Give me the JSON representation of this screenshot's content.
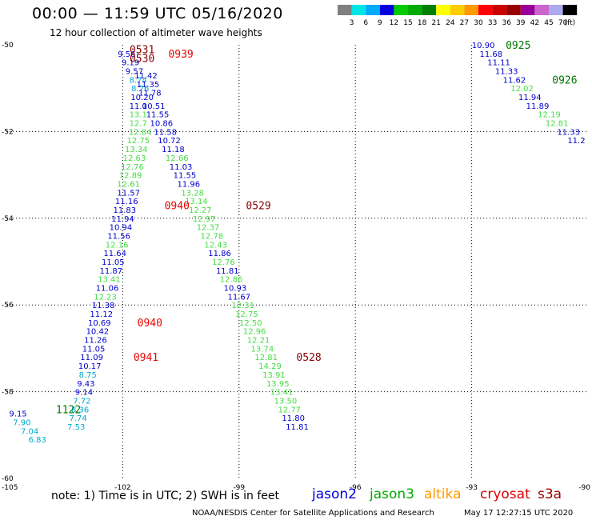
{
  "header": {
    "title": "00:00 — 11:59 UTC 05/16/2020",
    "subtitle": "12 hour collection of altimeter wave heights"
  },
  "colorbar": {
    "colors": [
      "#808080",
      "#00e5e5",
      "#00aaff",
      "#0000e0",
      "#00cc00",
      "#00aa00",
      "#008000",
      "#ffff00",
      "#ffcc00",
      "#ff9900",
      "#ff0000",
      "#cc0000",
      "#990000",
      "#990099",
      "#cc66cc",
      "#aaaaee",
      "#000000"
    ],
    "ticks": [
      "3",
      "6",
      "9",
      "12",
      "15",
      "18",
      "21",
      "24",
      "27",
      "30",
      "33",
      "36",
      "39",
      "42",
      "45",
      "70",
      "(ft)"
    ]
  },
  "axes": {
    "y_ticks": [
      "-50",
      "-52",
      "-54",
      "-56",
      "-58",
      "-60"
    ],
    "x_ticks": [
      "-105",
      "-102",
      "-99",
      "-96",
      "-93",
      "-90"
    ]
  },
  "chart_data": {
    "type": "scatter",
    "xlim": [
      -105,
      -90
    ],
    "ylim": [
      -60,
      -50
    ],
    "grid": true,
    "points": [
      {
        "lon": -101.9,
        "lat": -50.2,
        "v": "9.56",
        "c": "blue"
      },
      {
        "lon": -101.8,
        "lat": -50.4,
        "v": "9.19",
        "c": "blue"
      },
      {
        "lon": -101.7,
        "lat": -50.6,
        "v": "9.57",
        "c": "blue"
      },
      {
        "lon": -101.6,
        "lat": -50.8,
        "v": "8.74",
        "c": "cyan"
      },
      {
        "lon": -101.55,
        "lat": -51.0,
        "v": "8.76",
        "c": "cyan"
      },
      {
        "lon": -101.5,
        "lat": -51.2,
        "v": "10.20",
        "c": "blue"
      },
      {
        "lon": -101.6,
        "lat": -51.4,
        "v": "11.0",
        "c": "blue"
      },
      {
        "lon": -101.6,
        "lat": -51.6,
        "v": "13.1",
        "c": "green"
      },
      {
        "lon": -101.6,
        "lat": -51.8,
        "v": "12.7",
        "c": "green"
      },
      {
        "lon": -101.55,
        "lat": -52.0,
        "v": "12.84",
        "c": "green"
      },
      {
        "lon": -101.6,
        "lat": -52.2,
        "v": "12.75",
        "c": "green"
      },
      {
        "lon": -101.65,
        "lat": -52.4,
        "v": "13.34",
        "c": "green"
      },
      {
        "lon": -101.7,
        "lat": -52.6,
        "v": "12.63",
        "c": "green"
      },
      {
        "lon": -101.75,
        "lat": -52.8,
        "v": "12.76",
        "c": "green"
      },
      {
        "lon": -101.8,
        "lat": -53.0,
        "v": "12.89",
        "c": "green"
      },
      {
        "lon": -101.85,
        "lat": -53.2,
        "v": "12.61",
        "c": "green"
      },
      {
        "lon": -101.85,
        "lat": -53.4,
        "v": "11.57",
        "c": "blue"
      },
      {
        "lon": -101.9,
        "lat": -53.6,
        "v": "11.16",
        "c": "blue"
      },
      {
        "lon": -101.95,
        "lat": -53.8,
        "v": "11.83",
        "c": "blue"
      },
      {
        "lon": -102.0,
        "lat": -54.0,
        "v": "11.94",
        "c": "blue"
      },
      {
        "lon": -102.05,
        "lat": -54.2,
        "v": "10.94",
        "c": "blue"
      },
      {
        "lon": -102.1,
        "lat": -54.4,
        "v": "11.56",
        "c": "blue"
      },
      {
        "lon": -102.15,
        "lat": -54.6,
        "v": "12.16",
        "c": "green"
      },
      {
        "lon": -102.2,
        "lat": -54.8,
        "v": "11.64",
        "c": "blue"
      },
      {
        "lon": -102.25,
        "lat": -55.0,
        "v": "11.05",
        "c": "blue"
      },
      {
        "lon": -102.3,
        "lat": -55.2,
        "v": "11.87",
        "c": "blue"
      },
      {
        "lon": -102.35,
        "lat": -55.4,
        "v": "13.41",
        "c": "green"
      },
      {
        "lon": -102.4,
        "lat": -55.6,
        "v": "11.06",
        "c": "blue"
      },
      {
        "lon": -102.45,
        "lat": -55.8,
        "v": "12.23",
        "c": "green"
      },
      {
        "lon": -102.5,
        "lat": -56.0,
        "v": "11.38",
        "c": "blue"
      },
      {
        "lon": -102.55,
        "lat": -56.2,
        "v": "11.12",
        "c": "blue"
      },
      {
        "lon": -102.6,
        "lat": -56.4,
        "v": "10.69",
        "c": "blue"
      },
      {
        "lon": -102.65,
        "lat": -56.6,
        "v": "10.42",
        "c": "blue"
      },
      {
        "lon": -102.7,
        "lat": -56.8,
        "v": "11.26",
        "c": "blue"
      },
      {
        "lon": -102.75,
        "lat": -57.0,
        "v": "11.05",
        "c": "blue"
      },
      {
        "lon": -102.8,
        "lat": -57.2,
        "v": "11.09",
        "c": "blue"
      },
      {
        "lon": -102.85,
        "lat": -57.4,
        "v": "10.17",
        "c": "blue"
      },
      {
        "lon": -102.9,
        "lat": -57.6,
        "v": "8.75",
        "c": "cyan"
      },
      {
        "lon": -102.95,
        "lat": -57.8,
        "v": "9.43",
        "c": "blue"
      },
      {
        "lon": -103.0,
        "lat": -58.0,
        "v": "9.14",
        "c": "blue"
      },
      {
        "lon": -103.05,
        "lat": -58.2,
        "v": "7.72",
        "c": "cyan"
      },
      {
        "lon": -103.1,
        "lat": -58.4,
        "v": "8.36",
        "c": "cyan"
      },
      {
        "lon": -103.15,
        "lat": -58.6,
        "v": "7.74",
        "c": "cyan"
      },
      {
        "lon": -103.2,
        "lat": -58.8,
        "v": "7.53",
        "c": "cyan"
      },
      {
        "lon": -104.7,
        "lat": -58.5,
        "v": "9.15",
        "c": "blue"
      },
      {
        "lon": -104.6,
        "lat": -58.7,
        "v": "7.90",
        "c": "cyan"
      },
      {
        "lon": -104.4,
        "lat": -58.9,
        "v": "7.04",
        "c": "cyan"
      },
      {
        "lon": -104.2,
        "lat": -59.1,
        "v": "6.83",
        "c": "cyan"
      },
      {
        "lon": -101.4,
        "lat": -50.7,
        "v": "11.42",
        "c": "blue"
      },
      {
        "lon": -101.35,
        "lat": -50.9,
        "v": "11.35",
        "c": "blue"
      },
      {
        "lon": -101.3,
        "lat": -51.1,
        "v": "11.78",
        "c": "blue"
      },
      {
        "lon": -101.2,
        "lat": -51.4,
        "v": "10.51",
        "c": "blue"
      },
      {
        "lon": -101.1,
        "lat": -51.6,
        "v": "11.55",
        "c": "blue"
      },
      {
        "lon": -101.0,
        "lat": -51.8,
        "v": "10.86",
        "c": "blue"
      },
      {
        "lon": -100.9,
        "lat": -52.0,
        "v": "11.58",
        "c": "blue"
      },
      {
        "lon": -100.8,
        "lat": -52.2,
        "v": "10.72",
        "c": "blue"
      },
      {
        "lon": -100.7,
        "lat": -52.4,
        "v": "11.18",
        "c": "blue"
      },
      {
        "lon": -100.6,
        "lat": -52.6,
        "v": "12.66",
        "c": "green"
      },
      {
        "lon": -100.5,
        "lat": -52.8,
        "v": "11.03",
        "c": "blue"
      },
      {
        "lon": -100.4,
        "lat": -53.0,
        "v": "11.55",
        "c": "blue"
      },
      {
        "lon": -100.3,
        "lat": -53.2,
        "v": "11.96",
        "c": "blue"
      },
      {
        "lon": -100.2,
        "lat": -53.4,
        "v": "13.28",
        "c": "green"
      },
      {
        "lon": -100.1,
        "lat": -53.6,
        "v": "13.14",
        "c": "green"
      },
      {
        "lon": -100.0,
        "lat": -53.8,
        "v": "12.27",
        "c": "green"
      },
      {
        "lon": -99.9,
        "lat": -54.0,
        "v": "12.97",
        "c": "green"
      },
      {
        "lon": -99.8,
        "lat": -54.2,
        "v": "12.37",
        "c": "green"
      },
      {
        "lon": -99.7,
        "lat": -54.4,
        "v": "12.78",
        "c": "green"
      },
      {
        "lon": -99.6,
        "lat": -54.6,
        "v": "12.43",
        "c": "green"
      },
      {
        "lon": -99.5,
        "lat": -54.8,
        "v": "11.86",
        "c": "blue"
      },
      {
        "lon": -99.4,
        "lat": -55.0,
        "v": "12.76",
        "c": "green"
      },
      {
        "lon": -99.3,
        "lat": -55.2,
        "v": "11.81",
        "c": "blue"
      },
      {
        "lon": -99.2,
        "lat": -55.4,
        "v": "12.86",
        "c": "green"
      },
      {
        "lon": -99.1,
        "lat": -55.6,
        "v": "10.93",
        "c": "blue"
      },
      {
        "lon": -99.0,
        "lat": -55.8,
        "v": "11.67",
        "c": "blue"
      },
      {
        "lon": -98.9,
        "lat": -56.0,
        "v": "12.31",
        "c": "green"
      },
      {
        "lon": -98.8,
        "lat": -56.2,
        "v": "12.75",
        "c": "green"
      },
      {
        "lon": -98.7,
        "lat": -56.4,
        "v": "12.50",
        "c": "green"
      },
      {
        "lon": -98.6,
        "lat": -56.6,
        "v": "12.96",
        "c": "green"
      },
      {
        "lon": -98.5,
        "lat": -56.8,
        "v": "12.21",
        "c": "green"
      },
      {
        "lon": -98.4,
        "lat": -57.0,
        "v": "13.74",
        "c": "green"
      },
      {
        "lon": -98.3,
        "lat": -57.2,
        "v": "12.81",
        "c": "green"
      },
      {
        "lon": -98.2,
        "lat": -57.4,
        "v": "14.29",
        "c": "green"
      },
      {
        "lon": -98.1,
        "lat": -57.6,
        "v": "13.91",
        "c": "green"
      },
      {
        "lon": -98.0,
        "lat": -57.8,
        "v": "13.95",
        "c": "green"
      },
      {
        "lon": -97.9,
        "lat": -58.0,
        "v": "13.41",
        "c": "green"
      },
      {
        "lon": -97.8,
        "lat": -58.2,
        "v": "13.50",
        "c": "green"
      },
      {
        "lon": -97.7,
        "lat": -58.4,
        "v": "12.77",
        "c": "green"
      },
      {
        "lon": -97.6,
        "lat": -58.6,
        "v": "11.80",
        "c": "blue"
      },
      {
        "lon": -97.5,
        "lat": -58.8,
        "v": "11.81",
        "c": "blue"
      },
      {
        "lon": -92.7,
        "lat": -50.0,
        "v": "10.90",
        "c": "blue"
      },
      {
        "lon": -92.5,
        "lat": -50.2,
        "v": "11.68",
        "c": "blue"
      },
      {
        "lon": -92.3,
        "lat": -50.4,
        "v": "11.11",
        "c": "blue"
      },
      {
        "lon": -92.1,
        "lat": -50.6,
        "v": "11.33",
        "c": "blue"
      },
      {
        "lon": -91.9,
        "lat": -50.8,
        "v": "11.62",
        "c": "blue"
      },
      {
        "lon": -91.7,
        "lat": -51.0,
        "v": "12.02",
        "c": "green"
      },
      {
        "lon": -91.5,
        "lat": -51.2,
        "v": "11.94",
        "c": "blue"
      },
      {
        "lon": -91.3,
        "lat": -51.4,
        "v": "11.89",
        "c": "blue"
      },
      {
        "lon": -91.0,
        "lat": -51.6,
        "v": "12.19",
        "c": "green"
      },
      {
        "lon": -90.8,
        "lat": -51.8,
        "v": "12.81",
        "c": "green"
      },
      {
        "lon": -90.5,
        "lat": -52.0,
        "v": "11.33",
        "c": "blue"
      },
      {
        "lon": -90.3,
        "lat": -52.2,
        "v": "11.2",
        "c": "blue"
      }
    ],
    "time_labels": [
      {
        "lon": -101.5,
        "lat": -50.1,
        "t": "0531",
        "c": "darkred"
      },
      {
        "lon": -101.5,
        "lat": -50.3,
        "t": "0530",
        "c": "darkred"
      },
      {
        "lon": -100.5,
        "lat": -50.2,
        "t": "0939",
        "c": "red"
      },
      {
        "lon": -100.6,
        "lat": -53.7,
        "t": "0940",
        "c": "red"
      },
      {
        "lon": -98.5,
        "lat": -53.7,
        "t": "0529",
        "c": "darkred"
      },
      {
        "lon": -101.3,
        "lat": -56.4,
        "t": "0940",
        "c": "red"
      },
      {
        "lon": -101.4,
        "lat": -57.2,
        "t": "0941",
        "c": "red"
      },
      {
        "lon": -97.2,
        "lat": -57.2,
        "t": "0528",
        "c": "darkred"
      },
      {
        "lon": -103.4,
        "lat": -58.4,
        "t": "1122",
        "c": "darkgreen"
      },
      {
        "lon": -91.8,
        "lat": -50.0,
        "t": "0925",
        "c": "darkgreen"
      },
      {
        "lon": -90.6,
        "lat": -50.8,
        "t": "0926",
        "c": "darkgreen"
      }
    ]
  },
  "footer": {
    "note": "note:  1) Time is in UTC; 2) SWH is in feet",
    "satellites": [
      {
        "name": "jason2",
        "color": "#0000dd"
      },
      {
        "name": "jason3",
        "color": "#00aa00"
      },
      {
        "name": "altika",
        "color": "#ff9900"
      },
      {
        "name": "cryosat",
        "color": "#dd0000"
      },
      {
        "name": "s3a",
        "color": "#990000"
      }
    ],
    "credit": "NOAA/NESDIS Center for Satellite Applications and Research",
    "timestamp": "May 17 12:27:15 UTC 2020"
  }
}
